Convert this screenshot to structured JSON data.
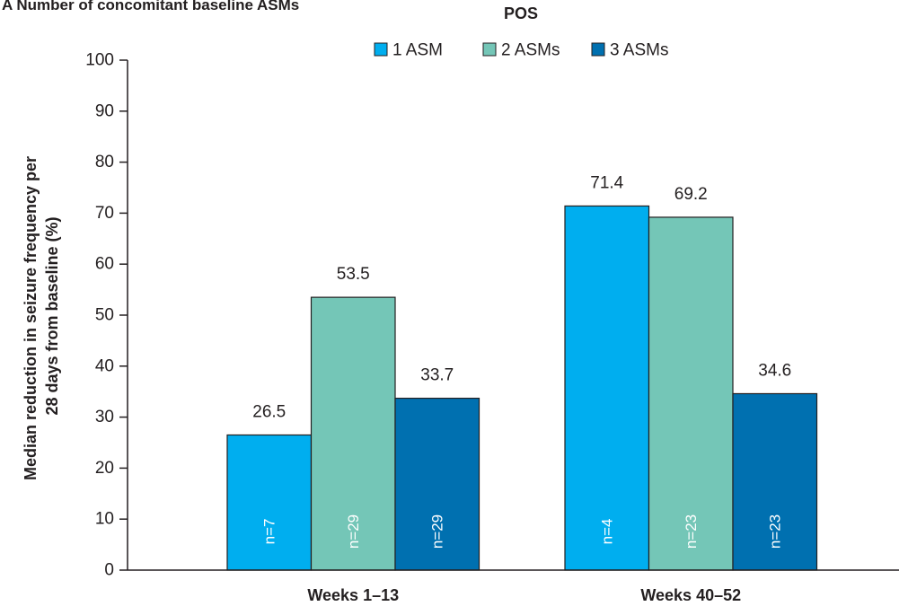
{
  "panel_title": "A Number of concomitant baseline ASMs",
  "chart_data": {
    "type": "bar",
    "title": "POS",
    "ylabel_lines": [
      "Median reduction in seizure frequency per",
      "28 days from baseline (%)"
    ],
    "xlabel": "",
    "ylim": [
      0,
      100
    ],
    "yticks": [
      0,
      10,
      20,
      30,
      40,
      50,
      60,
      70,
      80,
      90,
      100
    ],
    "categories": [
      "Weeks 1–13",
      "Weeks 40–52"
    ],
    "legend_position": "top",
    "series": [
      {
        "name": "1 ASM",
        "color": "#00aeef",
        "values": [
          26.5,
          71.4
        ],
        "value_labels": [
          "26.5",
          "71.4"
        ],
        "n_labels": [
          "n=7",
          "n=4"
        ]
      },
      {
        "name": "2 ASMs",
        "color": "#74c6b7",
        "values": [
          53.5,
          69.2
        ],
        "value_labels": [
          "53.5",
          "69.2"
        ],
        "n_labels": [
          "n=29",
          "n=23"
        ]
      },
      {
        "name": "3 ASMs",
        "color": "#0070b0",
        "values": [
          33.7,
          34.6
        ],
        "value_labels": [
          "33.7",
          "34.6"
        ],
        "n_labels": [
          "n=29",
          "n=23"
        ]
      }
    ]
  }
}
